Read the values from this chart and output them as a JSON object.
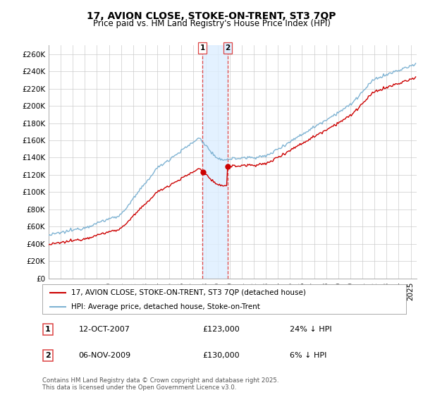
{
  "title": "17, AVION CLOSE, STOKE-ON-TRENT, ST3 7QP",
  "subtitle": "Price paid vs. HM Land Registry's House Price Index (HPI)",
  "ylabel_ticks": [
    "£0",
    "£20K",
    "£40K",
    "£60K",
    "£80K",
    "£100K",
    "£120K",
    "£140K",
    "£160K",
    "£180K",
    "£200K",
    "£220K",
    "£240K",
    "£260K"
  ],
  "ytick_values": [
    0,
    20000,
    40000,
    60000,
    80000,
    100000,
    120000,
    140000,
    160000,
    180000,
    200000,
    220000,
    240000,
    260000
  ],
  "ylim": [
    0,
    270000
  ],
  "legend1": "17, AVION CLOSE, STOKE-ON-TRENT, ST3 7QP (detached house)",
  "legend2": "HPI: Average price, detached house, Stoke-on-Trent",
  "color_red": "#cc0000",
  "color_blue": "#7fb3d3",
  "sale1_price": 123000,
  "sale2_price": 130000,
  "sale1_date_str": "12-OCT-2007",
  "sale2_date_str": "06-NOV-2009",
  "sale1_label": "24% ↓ HPI",
  "sale2_label": "6% ↓ HPI",
  "footer": "Contains HM Land Registry data © Crown copyright and database right 2025.\nThis data is licensed under the Open Government Licence v3.0.",
  "shade_color": "#ddeeff",
  "vline_color": "#dd4444",
  "background_color": "#ffffff",
  "grid_color": "#cccccc"
}
